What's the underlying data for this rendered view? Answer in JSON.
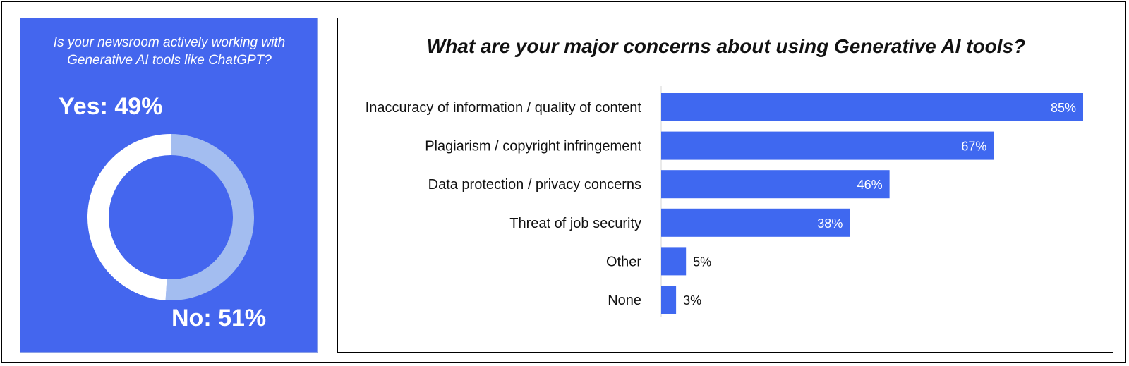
{
  "colors": {
    "panel_bg": "#4466ee",
    "donut_yes": "#ffffff",
    "donut_no": "#a3bdf0",
    "bar": "#3f68f0"
  },
  "chart_data": [
    {
      "type": "pie",
      "variant": "donut",
      "title": "Is your newsroom actively working with Generative AI tools like ChatGPT?",
      "slices": [
        {
          "name": "Yes",
          "value": 49,
          "label": "Yes: 49%"
        },
        {
          "name": "No",
          "value": 51,
          "label": "No: 51%"
        }
      ]
    },
    {
      "type": "bar",
      "orientation": "horizontal",
      "title": "What are your major concerns about using Generative AI tools?",
      "categories": [
        "Inaccuracy of information / quality of content",
        "Plagiarism / copyright infringement",
        "Data protection / privacy concerns",
        "Threat of job security",
        "Other",
        "None"
      ],
      "values": [
        85,
        67,
        46,
        38,
        5,
        3
      ],
      "value_labels": [
        "85%",
        "67%",
        "46%",
        "38%",
        "5%",
        "3%"
      ],
      "xlim": [
        0,
        85
      ],
      "grid": false
    }
  ]
}
